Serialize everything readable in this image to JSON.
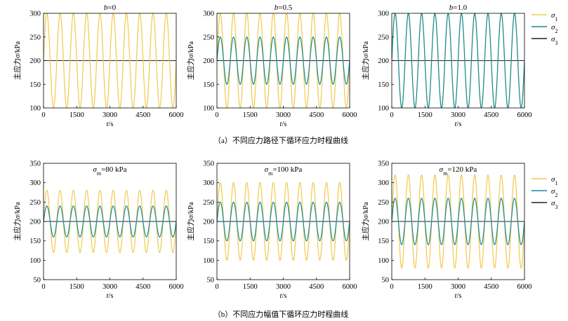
{
  "captions": {
    "a": "（a）不同应力路径下循环应力时程曲线",
    "b": "（b）不同应力幅值下循环应力时程曲线"
  },
  "axis_text": {
    "ylabel_prefix": "主应力",
    "ylabel_var": "σ",
    "ylabel_unit": "/kPa",
    "xlabel_var": "t",
    "xlabel_unit": "/s"
  },
  "legend": [
    {
      "symbol": "σ",
      "sub": "1"
    },
    {
      "symbol": "σ",
      "sub": "2"
    },
    {
      "symbol": "σ",
      "sub": "3"
    }
  ],
  "colors": {
    "sigma1": "#f2c94c",
    "sigma2": "#138a96",
    "sigma3": "#222222",
    "axis": "#000000"
  },
  "chart_data": [
    {
      "type": "line",
      "title_parts": [
        {
          "t": "b",
          "italic": true
        },
        {
          "t": "=0"
        }
      ],
      "xlim": [
        0,
        6000
      ],
      "ylim": [
        100,
        300
      ],
      "xticks": [
        0,
        1500,
        3000,
        4500,
        6000
      ],
      "yticks": [
        100,
        150,
        200,
        250,
        300
      ],
      "period": 600,
      "series": [
        {
          "name": "σ1",
          "key": "sigma1",
          "mean": 200,
          "amp": 100
        },
        {
          "name": "σ3",
          "key": "sigma3",
          "mean": 200,
          "amp": 0
        }
      ]
    },
    {
      "type": "line",
      "title_parts": [
        {
          "t": "b",
          "italic": true
        },
        {
          "t": "=0.5"
        }
      ],
      "xlim": [
        0,
        6000
      ],
      "ylim": [
        100,
        300
      ],
      "xticks": [
        0,
        1500,
        3000,
        4500,
        6000
      ],
      "yticks": [
        100,
        150,
        200,
        250,
        300
      ],
      "period": 600,
      "series": [
        {
          "name": "σ1",
          "key": "sigma1",
          "mean": 200,
          "amp": 100
        },
        {
          "name": "σ2",
          "key": "sigma2",
          "mean": 200,
          "amp": 50
        },
        {
          "name": "σ3",
          "key": "sigma3",
          "mean": 200,
          "amp": 0
        }
      ]
    },
    {
      "type": "line",
      "title_parts": [
        {
          "t": "b",
          "italic": true
        },
        {
          "t": "=1.0"
        }
      ],
      "xlim": [
        0,
        6000
      ],
      "ylim": [
        100,
        300
      ],
      "xticks": [
        0,
        1500,
        3000,
        4500,
        6000
      ],
      "yticks": [
        100,
        150,
        200,
        250,
        300
      ],
      "period": 600,
      "legend": true,
      "series": [
        {
          "name": "σ1",
          "key": "sigma1",
          "mean": 200,
          "amp": 100
        },
        {
          "name": "σ2",
          "key": "sigma2",
          "mean": 200,
          "amp": 100
        },
        {
          "name": "σ3",
          "key": "sigma3",
          "mean": 200,
          "amp": 0
        }
      ]
    },
    {
      "type": "line",
      "title_parts": [
        {
          "t": "σ",
          "italic": true
        },
        {
          "t": "m",
          "sub": true
        },
        {
          "t": "=80 kPa"
        }
      ],
      "xlim": [
        0,
        6000
      ],
      "ylim": [
        50,
        350
      ],
      "xticks": [
        0,
        1500,
        3000,
        4500,
        6000
      ],
      "yticks": [
        50,
        100,
        150,
        200,
        250,
        300,
        350
      ],
      "period": 600,
      "series": [
        {
          "name": "σ1",
          "key": "sigma1",
          "mean": 200,
          "amp": 80
        },
        {
          "name": "σ2",
          "key": "sigma2",
          "mean": 200,
          "amp": 40
        },
        {
          "name": "σ3",
          "key": "sigma3",
          "mean": 200,
          "amp": 0
        }
      ]
    },
    {
      "type": "line",
      "title_parts": [
        {
          "t": "σ",
          "italic": true
        },
        {
          "t": "m",
          "sub": true
        },
        {
          "t": "=100 kPa"
        }
      ],
      "xlim": [
        0,
        6000
      ],
      "ylim": [
        50,
        350
      ],
      "xticks": [
        0,
        1500,
        3000,
        4500,
        6000
      ],
      "yticks": [
        50,
        100,
        150,
        200,
        250,
        300,
        350
      ],
      "period": 600,
      "series": [
        {
          "name": "σ1",
          "key": "sigma1",
          "mean": 200,
          "amp": 100
        },
        {
          "name": "σ2",
          "key": "sigma2",
          "mean": 200,
          "amp": 50
        },
        {
          "name": "σ3",
          "key": "sigma3",
          "mean": 200,
          "amp": 0
        }
      ]
    },
    {
      "type": "line",
      "title_parts": [
        {
          "t": "σ",
          "italic": true
        },
        {
          "t": "m",
          "sub": true
        },
        {
          "t": "=120 kPa"
        }
      ],
      "xlim": [
        0,
        6000
      ],
      "ylim": [
        50,
        350
      ],
      "xticks": [
        0,
        1500,
        3000,
        4500,
        6000
      ],
      "yticks": [
        50,
        100,
        150,
        200,
        250,
        300,
        350
      ],
      "period": 600,
      "legend": true,
      "series": [
        {
          "name": "σ1",
          "key": "sigma1",
          "mean": 200,
          "amp": 120
        },
        {
          "name": "σ2",
          "key": "sigma2",
          "mean": 200,
          "amp": 60
        },
        {
          "name": "σ3",
          "key": "sigma3",
          "mean": 200,
          "amp": 0
        }
      ]
    }
  ]
}
